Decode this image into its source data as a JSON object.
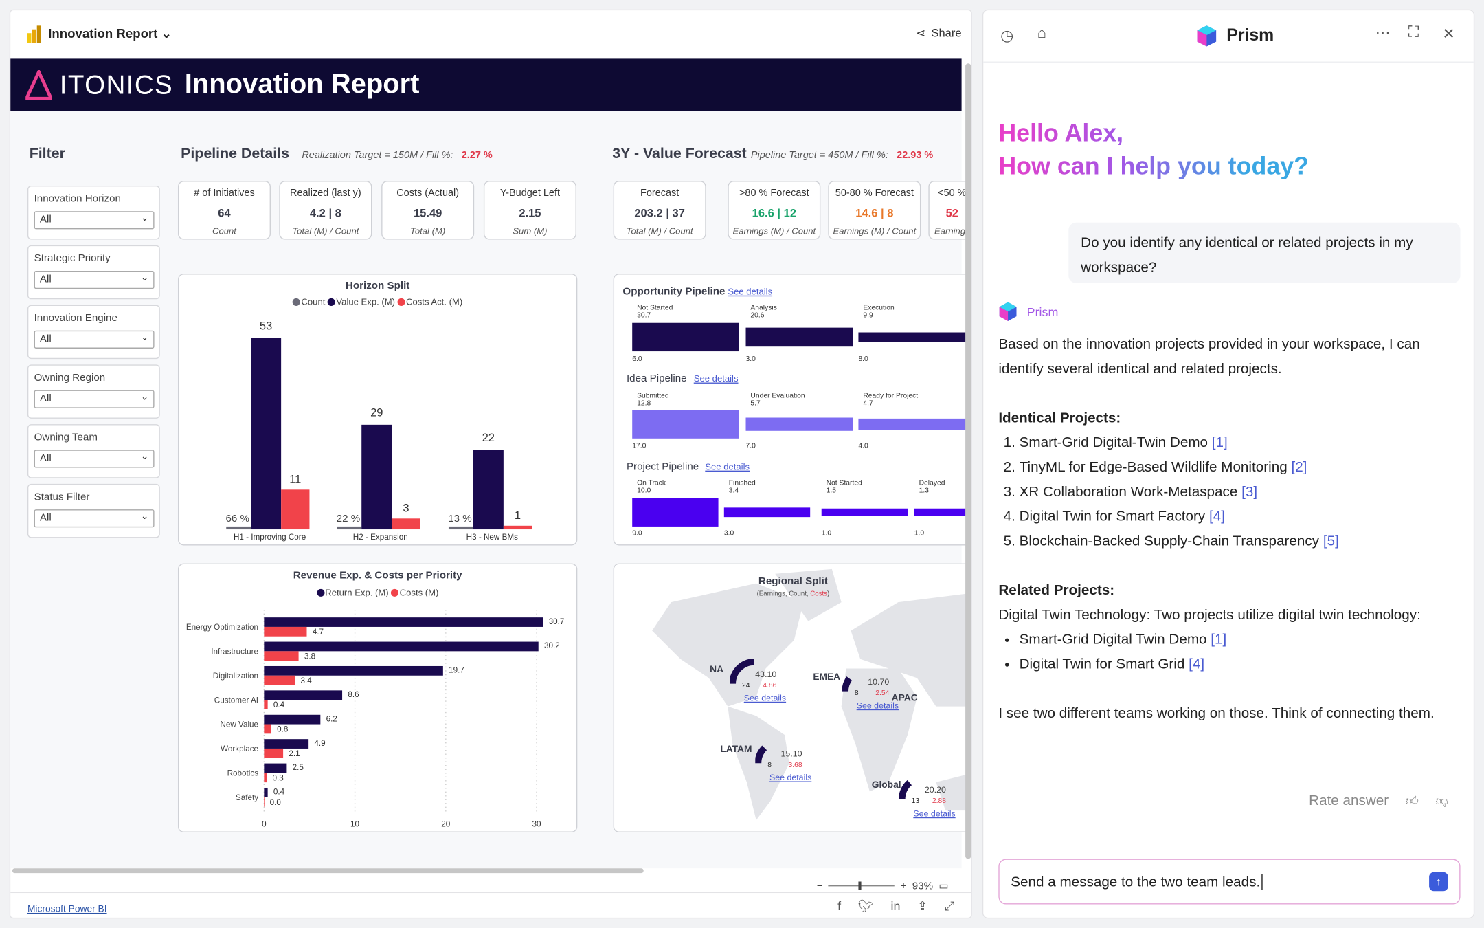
{
  "report": {
    "title": "Innovation Report",
    "share": "Share",
    "brand": "ITONICS",
    "banner_title": "Innovation Report",
    "footer_link": "Microsoft Power BI",
    "zoom": "93%"
  },
  "filter": {
    "title": "Filter",
    "items": [
      {
        "label": "Innovation Horizon",
        "value": "All"
      },
      {
        "label": "Strategic Priority",
        "value": "All"
      },
      {
        "label": "Innovation Engine",
        "value": "All"
      },
      {
        "label": "Owning Region",
        "value": "All"
      },
      {
        "label": "Owning Team",
        "value": "All"
      },
      {
        "label": "Status Filter",
        "value": "All"
      }
    ]
  },
  "pipeline": {
    "title": "Pipeline Details",
    "target": "Realization Target  =  150M / Fill %:",
    "fill": "2.27 %",
    "kpis": [
      {
        "title": "# of Initiatives",
        "value": "64",
        "sub": "Count"
      },
      {
        "title": "Realized (last y)",
        "value": "4.2 | 8",
        "sub": "Total (M) / Count"
      },
      {
        "title": "Costs (Actual)",
        "value": "15.49",
        "sub": "Total (M)"
      },
      {
        "title": "Y-Budget Left",
        "value": "2.15",
        "sub": "Sum (M)"
      }
    ]
  },
  "forecast": {
    "title": "3Y - Value Forecast",
    "target": "Pipeline Target  =  450M / Fill %:",
    "fill": "22.93 %",
    "kpis": [
      {
        "title": "Forecast",
        "value": "203.2 | 37",
        "sub": "Total (M) / Count",
        "color": "#3a3d4a"
      },
      {
        "title": ">80 % Forecast",
        "value": "16.6 | 12",
        "sub": "Earnings (M) / Count",
        "color": "#1aa36b"
      },
      {
        "title": "50-80 % Forecast",
        "value": "14.6 | 8",
        "sub": "Earnings (M) / Count",
        "color": "#e8782a"
      },
      {
        "title": "<50 %",
        "value": "52",
        "sub": "Earnings",
        "color": "#e0394a"
      }
    ]
  },
  "colors": {
    "navy": "#1a0a4f",
    "red": "#f1434a",
    "gray": "#6b6b78",
    "idea": "#7d6cf2",
    "project": "#4a00f0"
  },
  "chart_data": [
    {
      "type": "bar",
      "title": "Horizon Split",
      "legend": [
        "Count",
        "Value Exp. (M)",
        "Costs Act. (M)"
      ],
      "categories": [
        "H1 - Improving Core",
        "H2 - Expansion",
        "H3 - New BMs"
      ],
      "series": [
        {
          "name": "Count",
          "values": [
            "66 %",
            "22 %",
            "13 %"
          ]
        },
        {
          "name": "Value Exp. (M)",
          "values": [
            53,
            29,
            22
          ]
        },
        {
          "name": "Costs Act. (M)",
          "values": [
            11,
            3,
            1
          ]
        }
      ]
    },
    {
      "type": "bar",
      "orientation": "horizontal",
      "title": "Revenue Exp. & Costs per Priority",
      "legend": [
        "Return Exp. (M)",
        "Costs (M)"
      ],
      "categories": [
        "Energy Optimization",
        "Infrastructure",
        "Digitalization",
        "Customer AI",
        "New Value",
        "Workplace",
        "Robotics",
        "Safety"
      ],
      "series": [
        {
          "name": "Return Exp. (M)",
          "values": [
            30.7,
            30.2,
            19.7,
            8.6,
            6.2,
            4.9,
            2.5,
            0.4
          ]
        },
        {
          "name": "Costs (M)",
          "values": [
            4.7,
            3.8,
            3.4,
            0.4,
            0.8,
            2.1,
            0.3,
            0.0
          ]
        }
      ],
      "xlim": [
        0,
        32
      ],
      "xticks": [
        0,
        10,
        20,
        30
      ],
      "grid": true
    },
    {
      "type": "bar",
      "title": "Opportunity Pipeline",
      "link": "See details",
      "stages": [
        {
          "name": "Not Started",
          "value": "30.7",
          "count": "6.0"
        },
        {
          "name": "Analysis",
          "value": "20.6",
          "count": "3.0"
        },
        {
          "name": "Execution",
          "value": "9.9",
          "count": "8.0"
        }
      ]
    },
    {
      "type": "bar",
      "title": "Idea Pipeline",
      "link": "See details",
      "stages": [
        {
          "name": "Submitted",
          "value": "12.8",
          "count": "17.0"
        },
        {
          "name": "Under Evaluation",
          "value": "5.7",
          "count": "7.0"
        },
        {
          "name": "Ready for Project",
          "value": "4.7",
          "count": "4.0"
        }
      ]
    },
    {
      "type": "bar",
      "title": "Project Pipeline",
      "link": "See details",
      "stages": [
        {
          "name": "On Track",
          "value": "10.0",
          "count": "9.0"
        },
        {
          "name": "Finished",
          "value": "3.4",
          "count": "3.0"
        },
        {
          "name": "Not Started",
          "value": "1.5",
          "count": "1.0"
        },
        {
          "name": "Delayed",
          "value": "1.3",
          "count": "1.0"
        }
      ]
    }
  ],
  "regional": {
    "title": "Regional Split",
    "sub_a": "(Earnings, Count, ",
    "sub_b": "Costs",
    "sub_c": ")",
    "link": "See details",
    "regions": [
      {
        "name": "NA",
        "earnings": "43.10",
        "count": "24",
        "costs": "4.86"
      },
      {
        "name": "EMEA",
        "earnings": "10.70",
        "count": "8",
        "costs": "2.54"
      },
      {
        "name": "LATAM",
        "earnings": "15.10",
        "count": "8",
        "costs": "3.68"
      },
      {
        "name": "Global",
        "earnings": "20.20",
        "count": "13",
        "costs": "2.88"
      },
      {
        "name": "APAC"
      }
    ]
  },
  "chat": {
    "title": "Prism",
    "greeting_1": "Hello Alex,",
    "greeting_2": "How can I help you today?",
    "user_msg": "Do you identify any identical or related projects in my workspace?",
    "bot_name": "Prism",
    "intro": "Based on the innovation projects provided in your workspace, I can identify several identical and related projects.",
    "identical_title": "Identical Projects:",
    "identical": [
      {
        "t": "Smart-Grid Digital-Twin Demo",
        "r": "[1]"
      },
      {
        "t": "TinyML for Edge-Based Wildlife Monitoring",
        "r": "[2]"
      },
      {
        "t": "XR Collaboration Work-Metaspace",
        "r": "[3]"
      },
      {
        "t": "Digital Twin for Smart Factory",
        "r": "[4]"
      },
      {
        "t": "Blockchain-Backed Supply-Chain Transparency",
        "r": "[5]"
      }
    ],
    "related_title": "Related Projects:",
    "related_intro": "Digital Twin Technology: Two projects utilize digital twin technology:",
    "related": [
      {
        "t": "Smart-Grid Digital Twin Demo",
        "r": "[1]"
      },
      {
        "t": "Digital Twin for Smart Grid",
        "r": "[4]"
      }
    ],
    "closing": "I see two different teams working on those. Think of connecting them.",
    "rate": "Rate answer",
    "input_value": "Send a message to the two team leads."
  }
}
